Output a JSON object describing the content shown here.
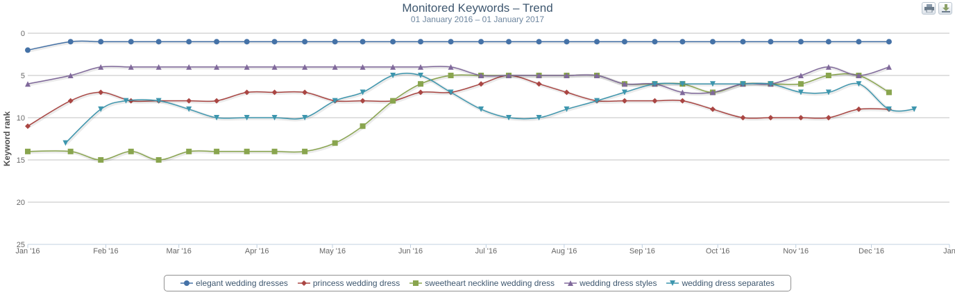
{
  "toolbar": {
    "print_label": "Print chart",
    "export_label": "Export chart"
  },
  "chart_data": {
    "type": "line",
    "title": "Monitored Keywords – Trend",
    "subtitle": "01 January 2016 – 01 January 2017",
    "xlabel": "",
    "ylabel": "Keyword rank",
    "y_reversed": true,
    "ylim": [
      0,
      25
    ],
    "yticks": [
      0,
      5,
      10,
      15,
      20,
      25
    ],
    "x_ticks": [
      "Jan '16",
      "Feb '16",
      "Mar '16",
      "Apr '16",
      "May '16",
      "Jun '16",
      "Jul '16",
      "Aug '16",
      "Sep '16",
      "Oct '16",
      "Nov '16",
      "Dec '16",
      "Jan"
    ],
    "x_tick_days": [
      0,
      31,
      60,
      91,
      121,
      152,
      182,
      213,
      244,
      274,
      305,
      335,
      366
    ],
    "x_domain_days": [
      0,
      366
    ],
    "grid": true,
    "legend_position": "bottom-center",
    "series": [
      {
        "name": "elegant wedding dresses",
        "color": "#4572a7",
        "marker": "circle",
        "x": [
          0,
          17,
          29,
          41,
          52,
          64,
          75,
          87,
          98,
          110,
          122,
          133,
          145,
          156,
          168,
          180,
          191,
          203,
          214,
          226,
          237,
          249,
          260,
          272,
          284,
          295,
          307,
          318,
          330,
          342
        ],
        "values": [
          2,
          1,
          1,
          1,
          1,
          1,
          1,
          1,
          1,
          1,
          1,
          1,
          1,
          1,
          1,
          1,
          1,
          1,
          1,
          1,
          1,
          1,
          1,
          1,
          1,
          1,
          1,
          1,
          1,
          1
        ]
      },
      {
        "name": "princess wedding dress",
        "color": "#aa4643",
        "marker": "diamond",
        "x": [
          0,
          17,
          29,
          41,
          52,
          64,
          75,
          87,
          98,
          110,
          122,
          133,
          145,
          156,
          168,
          180,
          191,
          203,
          214,
          226,
          237,
          249,
          260,
          272,
          284,
          295,
          307,
          318,
          330,
          342
        ],
        "values": [
          11,
          8,
          7,
          8,
          8,
          8,
          8,
          7,
          7,
          7,
          8,
          8,
          8,
          7,
          7,
          6,
          5,
          6,
          7,
          8,
          8,
          8,
          8,
          9,
          10,
          10,
          10,
          10,
          9,
          9
        ]
      },
      {
        "name": "sweetheart neckline wedding dress",
        "color": "#89a54e",
        "marker": "square",
        "x": [
          0,
          17,
          29,
          41,
          52,
          64,
          75,
          87,
          98,
          110,
          122,
          133,
          145,
          156,
          168,
          180,
          191,
          203,
          214,
          226,
          237,
          249,
          260,
          272,
          284,
          295,
          307,
          318,
          330,
          342
        ],
        "values": [
          14,
          14,
          15,
          14,
          15,
          14,
          14,
          14,
          14,
          14,
          13,
          11,
          8,
          6,
          5,
          5,
          5,
          5,
          5,
          5,
          6,
          6,
          6,
          7,
          6,
          6,
          6,
          5,
          5,
          7
        ]
      },
      {
        "name": "wedding dress styles",
        "color": "#80699b",
        "marker": "triangle",
        "x": [
          0,
          17,
          29,
          41,
          52,
          64,
          75,
          87,
          98,
          110,
          122,
          133,
          145,
          156,
          168,
          180,
          191,
          203,
          214,
          226,
          237,
          249,
          260,
          272,
          284,
          295,
          307,
          318,
          330,
          342
        ],
        "values": [
          6,
          5,
          4,
          4,
          4,
          4,
          4,
          4,
          4,
          4,
          4,
          4,
          4,
          4,
          4,
          5,
          5,
          5,
          5,
          5,
          6,
          6,
          7,
          7,
          6,
          6,
          5,
          4,
          5,
          4
        ]
      },
      {
        "name": "wedding dress separates",
        "color": "#3d96ae",
        "marker": "triangle-down",
        "x": [
          15,
          29,
          39,
          52,
          64,
          75,
          87,
          98,
          110,
          122,
          133,
          145,
          156,
          168,
          180,
          191,
          203,
          214,
          226,
          237,
          249,
          260,
          272,
          284,
          295,
          307,
          318,
          330,
          342,
          352
        ],
        "values": [
          13,
          9,
          8,
          8,
          9,
          10,
          10,
          10,
          10,
          8,
          7,
          5,
          5,
          7,
          9,
          10,
          10,
          9,
          8,
          7,
          6,
          6,
          6,
          6,
          6,
          7,
          7,
          6,
          9,
          9
        ]
      }
    ]
  }
}
